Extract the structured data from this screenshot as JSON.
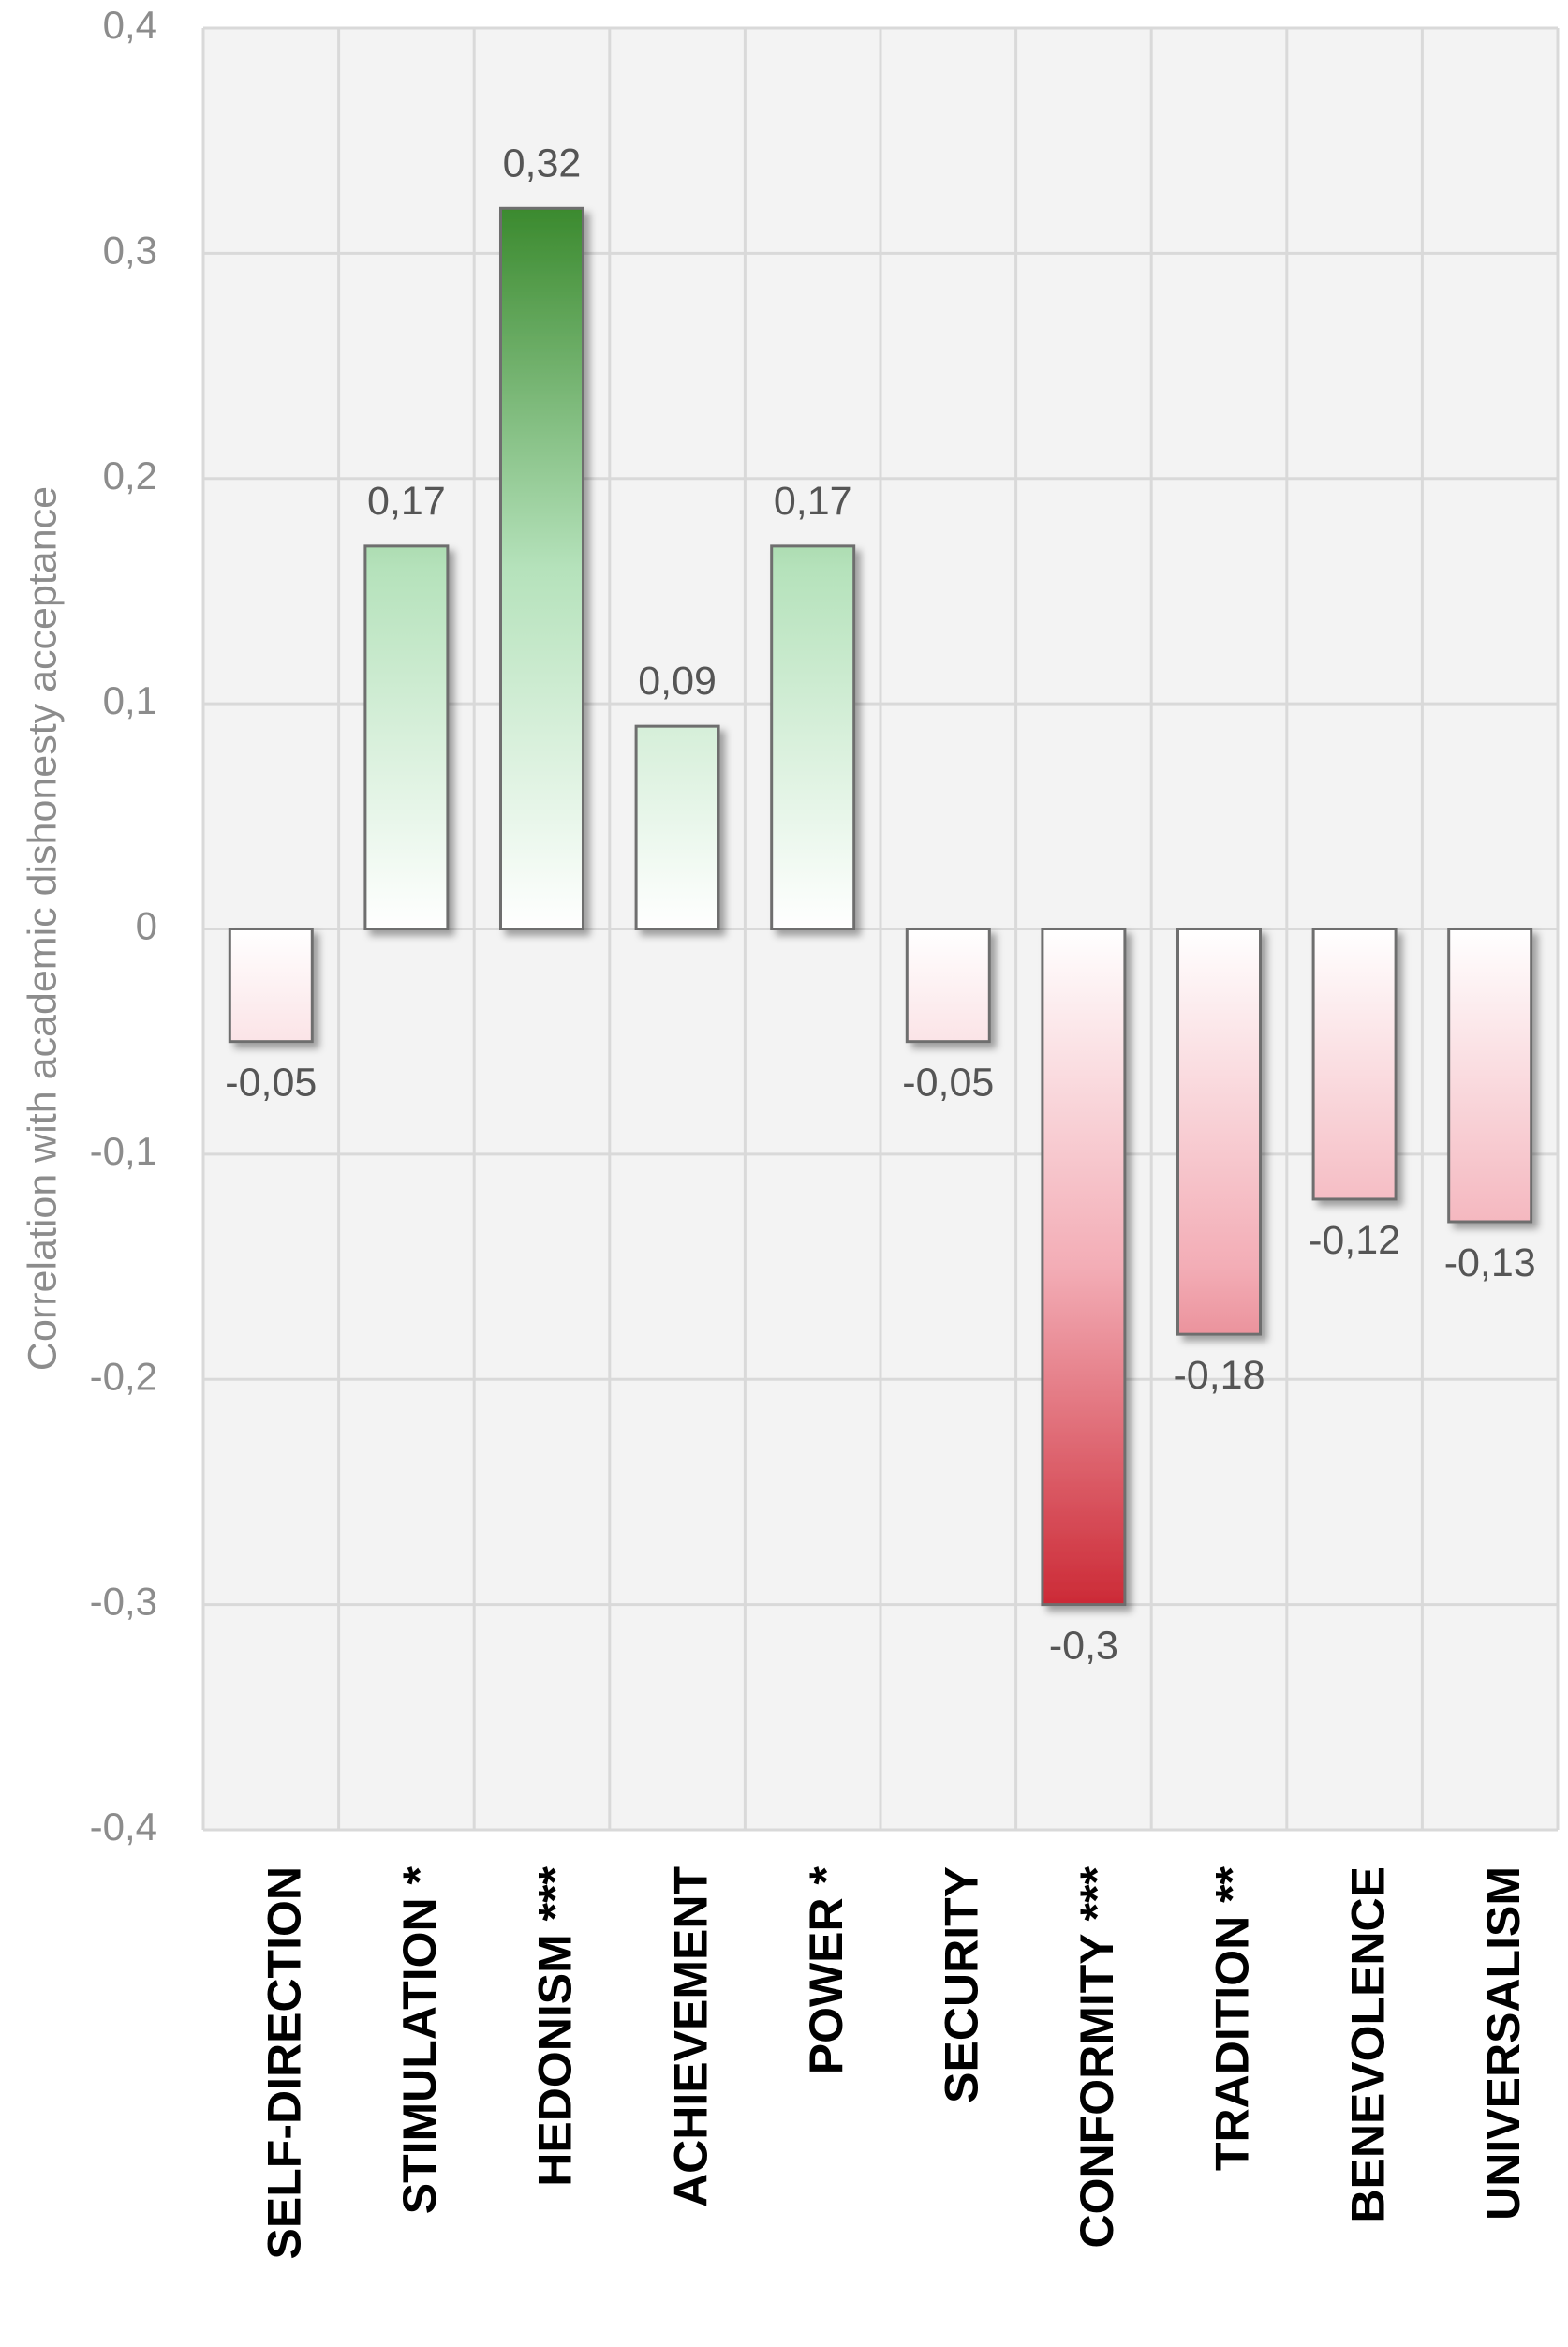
{
  "chart_data": {
    "type": "bar",
    "title": "",
    "xlabel": "",
    "ylabel": "Correlation with academic dishonesty acceptance",
    "ylim": [
      -0.4,
      0.4
    ],
    "yticks": [
      -0.4,
      -0.3,
      -0.2,
      -0.1,
      0,
      0.1,
      0.2,
      0.3,
      0.4
    ],
    "ytick_labels": [
      "-0,4",
      "-0,3",
      "-0,2",
      "-0,1",
      "0",
      "0,1",
      "0,2",
      "0,3",
      "0,4"
    ],
    "grid": true,
    "legend": "none",
    "categories": [
      "SELF-DIRECTION",
      "STIMULATION *",
      "HEDONISM ***",
      "ACHIEVEMENT",
      "POWER *",
      "SECURITY",
      "CONFORMITY ***",
      "TRADITION **",
      "BENEVOLENCE",
      "UNIVERSALISM"
    ],
    "values": [
      -0.05,
      0.17,
      0.32,
      0.09,
      0.17,
      -0.05,
      -0.3,
      -0.18,
      -0.12,
      -0.13
    ],
    "data_labels": [
      "-0,05",
      "0,17",
      "0,32",
      "0,09",
      "0,17",
      "-0,05",
      "-0,3",
      "-0,18",
      "-0,12",
      "-0,13"
    ],
    "colors": {
      "plot_background": "#f3f3f3",
      "gridline": "#d9d9d9",
      "axis_text": "#8c8c8c",
      "data_label_text": "#555555",
      "category_text": "#000000",
      "bar_border": "#6e6e6e",
      "positive_light": "#ffffff",
      "positive_dark": "#3b8a2e",
      "negative_light": "#ffffff",
      "negative_dark": "#cc2a36"
    }
  }
}
